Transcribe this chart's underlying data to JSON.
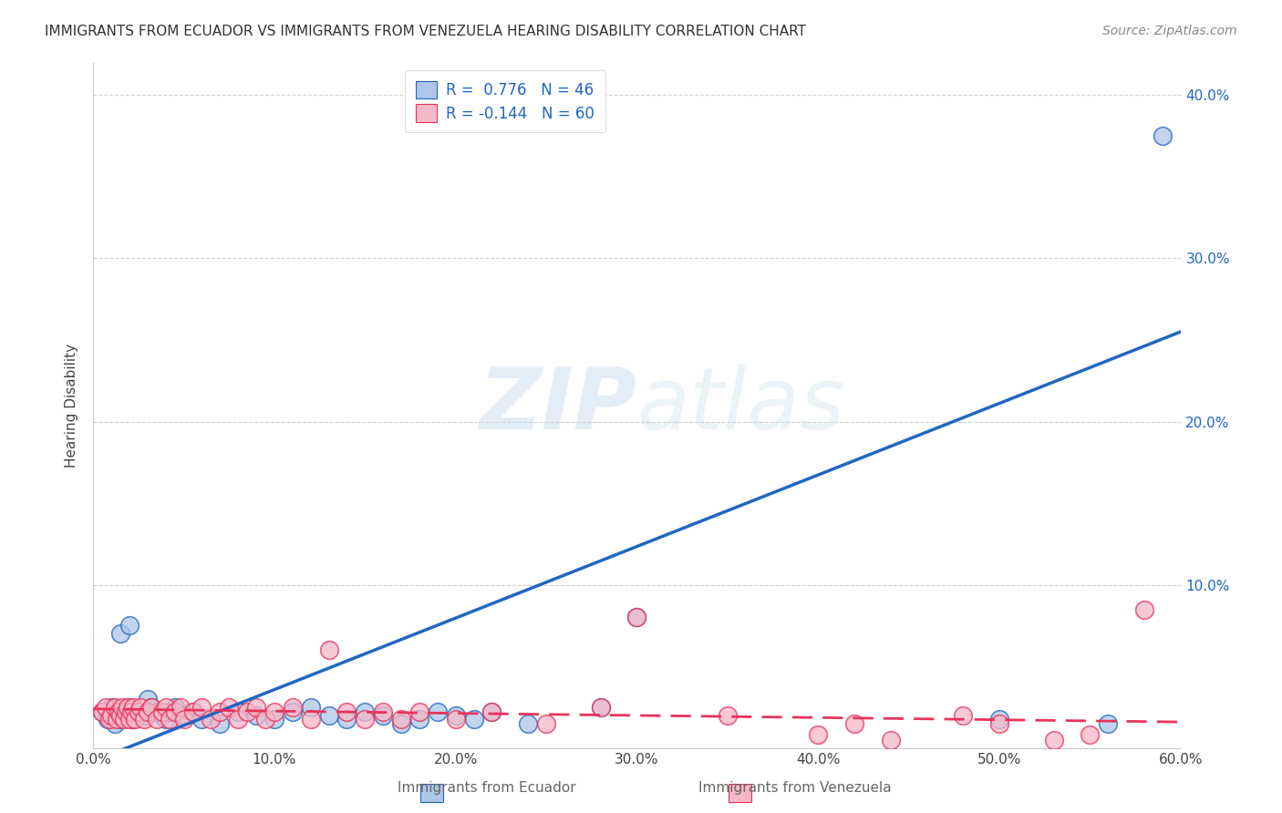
{
  "title": "IMMIGRANTS FROM ECUADOR VS IMMIGRANTS FROM VENEZUELA HEARING DISABILITY CORRELATION CHART",
  "source": "Source: ZipAtlas.com",
  "ylabel": "Hearing Disability",
  "xlim": [
    0.0,
    0.6
  ],
  "ylim": [
    0.0,
    0.42
  ],
  "ecuador_R": 0.776,
  "ecuador_N": 46,
  "venezuela_R": -0.144,
  "venezuela_N": 60,
  "ecuador_color": "#aec6e8",
  "venezuela_color": "#f5b8c8",
  "ecuador_line_color": "#2166c0",
  "venezuela_line_color": "#e8335a",
  "ecuador_scatter": [
    [
      0.005,
      0.022
    ],
    [
      0.008,
      0.018
    ],
    [
      0.01,
      0.025
    ],
    [
      0.012,
      0.015
    ],
    [
      0.013,
      0.02
    ],
    [
      0.015,
      0.018
    ],
    [
      0.016,
      0.022
    ],
    [
      0.018,
      0.02
    ],
    [
      0.02,
      0.025
    ],
    [
      0.022,
      0.018
    ],
    [
      0.025,
      0.022
    ],
    [
      0.028,
      0.02
    ],
    [
      0.015,
      0.07
    ],
    [
      0.02,
      0.075
    ],
    [
      0.03,
      0.03
    ],
    [
      0.032,
      0.025
    ],
    [
      0.035,
      0.022
    ],
    [
      0.038,
      0.02
    ],
    [
      0.04,
      0.018
    ],
    [
      0.042,
      0.022
    ],
    [
      0.045,
      0.025
    ],
    [
      0.05,
      0.02
    ],
    [
      0.055,
      0.022
    ],
    [
      0.06,
      0.018
    ],
    [
      0.07,
      0.015
    ],
    [
      0.08,
      0.022
    ],
    [
      0.09,
      0.02
    ],
    [
      0.1,
      0.018
    ],
    [
      0.11,
      0.022
    ],
    [
      0.12,
      0.025
    ],
    [
      0.13,
      0.02
    ],
    [
      0.14,
      0.018
    ],
    [
      0.15,
      0.022
    ],
    [
      0.16,
      0.02
    ],
    [
      0.17,
      0.015
    ],
    [
      0.18,
      0.018
    ],
    [
      0.19,
      0.022
    ],
    [
      0.2,
      0.02
    ],
    [
      0.21,
      0.018
    ],
    [
      0.22,
      0.022
    ],
    [
      0.24,
      0.015
    ],
    [
      0.28,
      0.025
    ],
    [
      0.3,
      0.08
    ],
    [
      0.5,
      0.018
    ],
    [
      0.56,
      0.015
    ],
    [
      0.59,
      0.375
    ]
  ],
  "venezuela_scatter": [
    [
      0.005,
      0.022
    ],
    [
      0.007,
      0.025
    ],
    [
      0.009,
      0.018
    ],
    [
      0.01,
      0.02
    ],
    [
      0.012,
      0.025
    ],
    [
      0.013,
      0.018
    ],
    [
      0.014,
      0.022
    ],
    [
      0.015,
      0.02
    ],
    [
      0.016,
      0.025
    ],
    [
      0.017,
      0.018
    ],
    [
      0.018,
      0.022
    ],
    [
      0.019,
      0.025
    ],
    [
      0.02,
      0.018
    ],
    [
      0.021,
      0.022
    ],
    [
      0.022,
      0.025
    ],
    [
      0.023,
      0.018
    ],
    [
      0.025,
      0.022
    ],
    [
      0.026,
      0.025
    ],
    [
      0.028,
      0.018
    ],
    [
      0.03,
      0.022
    ],
    [
      0.032,
      0.025
    ],
    [
      0.035,
      0.018
    ],
    [
      0.038,
      0.022
    ],
    [
      0.04,
      0.025
    ],
    [
      0.042,
      0.018
    ],
    [
      0.045,
      0.022
    ],
    [
      0.048,
      0.025
    ],
    [
      0.05,
      0.018
    ],
    [
      0.055,
      0.022
    ],
    [
      0.06,
      0.025
    ],
    [
      0.065,
      0.018
    ],
    [
      0.07,
      0.022
    ],
    [
      0.075,
      0.025
    ],
    [
      0.08,
      0.018
    ],
    [
      0.085,
      0.022
    ],
    [
      0.09,
      0.025
    ],
    [
      0.095,
      0.018
    ],
    [
      0.1,
      0.022
    ],
    [
      0.11,
      0.025
    ],
    [
      0.12,
      0.018
    ],
    [
      0.13,
      0.06
    ],
    [
      0.14,
      0.022
    ],
    [
      0.15,
      0.018
    ],
    [
      0.16,
      0.022
    ],
    [
      0.17,
      0.018
    ],
    [
      0.18,
      0.022
    ],
    [
      0.2,
      0.018
    ],
    [
      0.22,
      0.022
    ],
    [
      0.25,
      0.015
    ],
    [
      0.28,
      0.025
    ],
    [
      0.3,
      0.08
    ],
    [
      0.35,
      0.02
    ],
    [
      0.4,
      0.008
    ],
    [
      0.42,
      0.015
    ],
    [
      0.44,
      0.005
    ],
    [
      0.48,
      0.02
    ],
    [
      0.5,
      0.015
    ],
    [
      0.53,
      0.005
    ],
    [
      0.55,
      0.008
    ],
    [
      0.58,
      0.085
    ]
  ],
  "ecu_line": [
    0.0,
    0.6
  ],
  "ecu_line_y": [
    -0.008,
    0.255
  ],
  "ven_line": [
    0.0,
    0.6
  ],
  "ven_line_y": [
    0.024,
    0.016
  ],
  "watermark_text": "ZIPatlas",
  "watermark_zip": "ZIP",
  "watermark_atlas": "atlas",
  "grid_color": "#cccccc",
  "background_color": "#ffffff",
  "title_fontsize": 11,
  "source_fontsize": 10,
  "tick_fontsize": 11,
  "ylabel_fontsize": 11
}
